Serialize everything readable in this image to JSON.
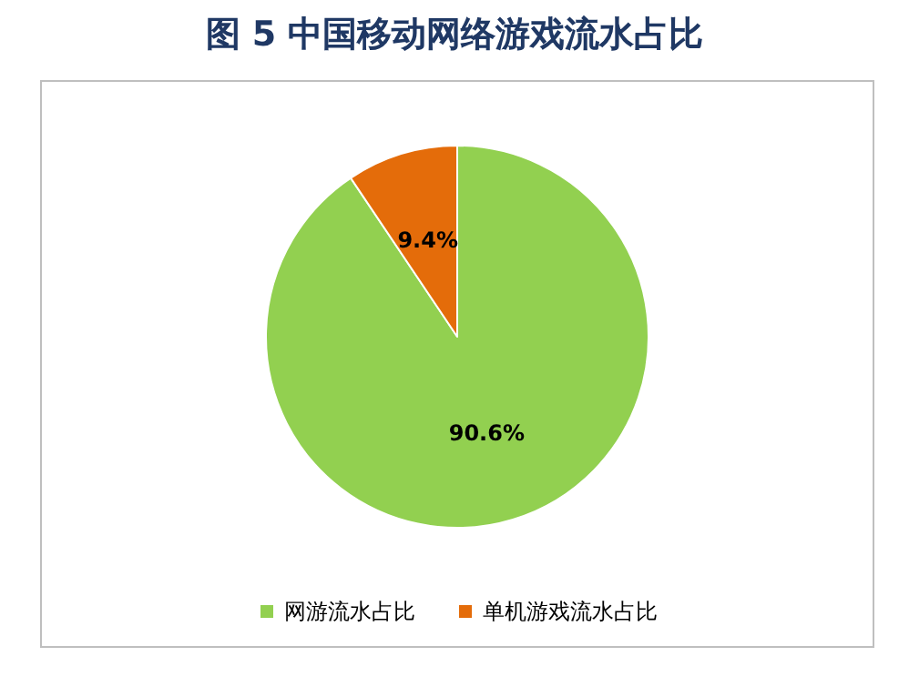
{
  "chart_data": {
    "type": "pie",
    "title": "图 5 中国移动网络游戏流水占比",
    "categories": [
      "网游流水占比",
      "单机游戏流水占比"
    ],
    "values": [
      90.6,
      9.4
    ],
    "colors": [
      "#92d050",
      "#e46c0a"
    ],
    "value_labels": [
      "90.6%",
      "9.4%"
    ],
    "legend": "bottom"
  }
}
